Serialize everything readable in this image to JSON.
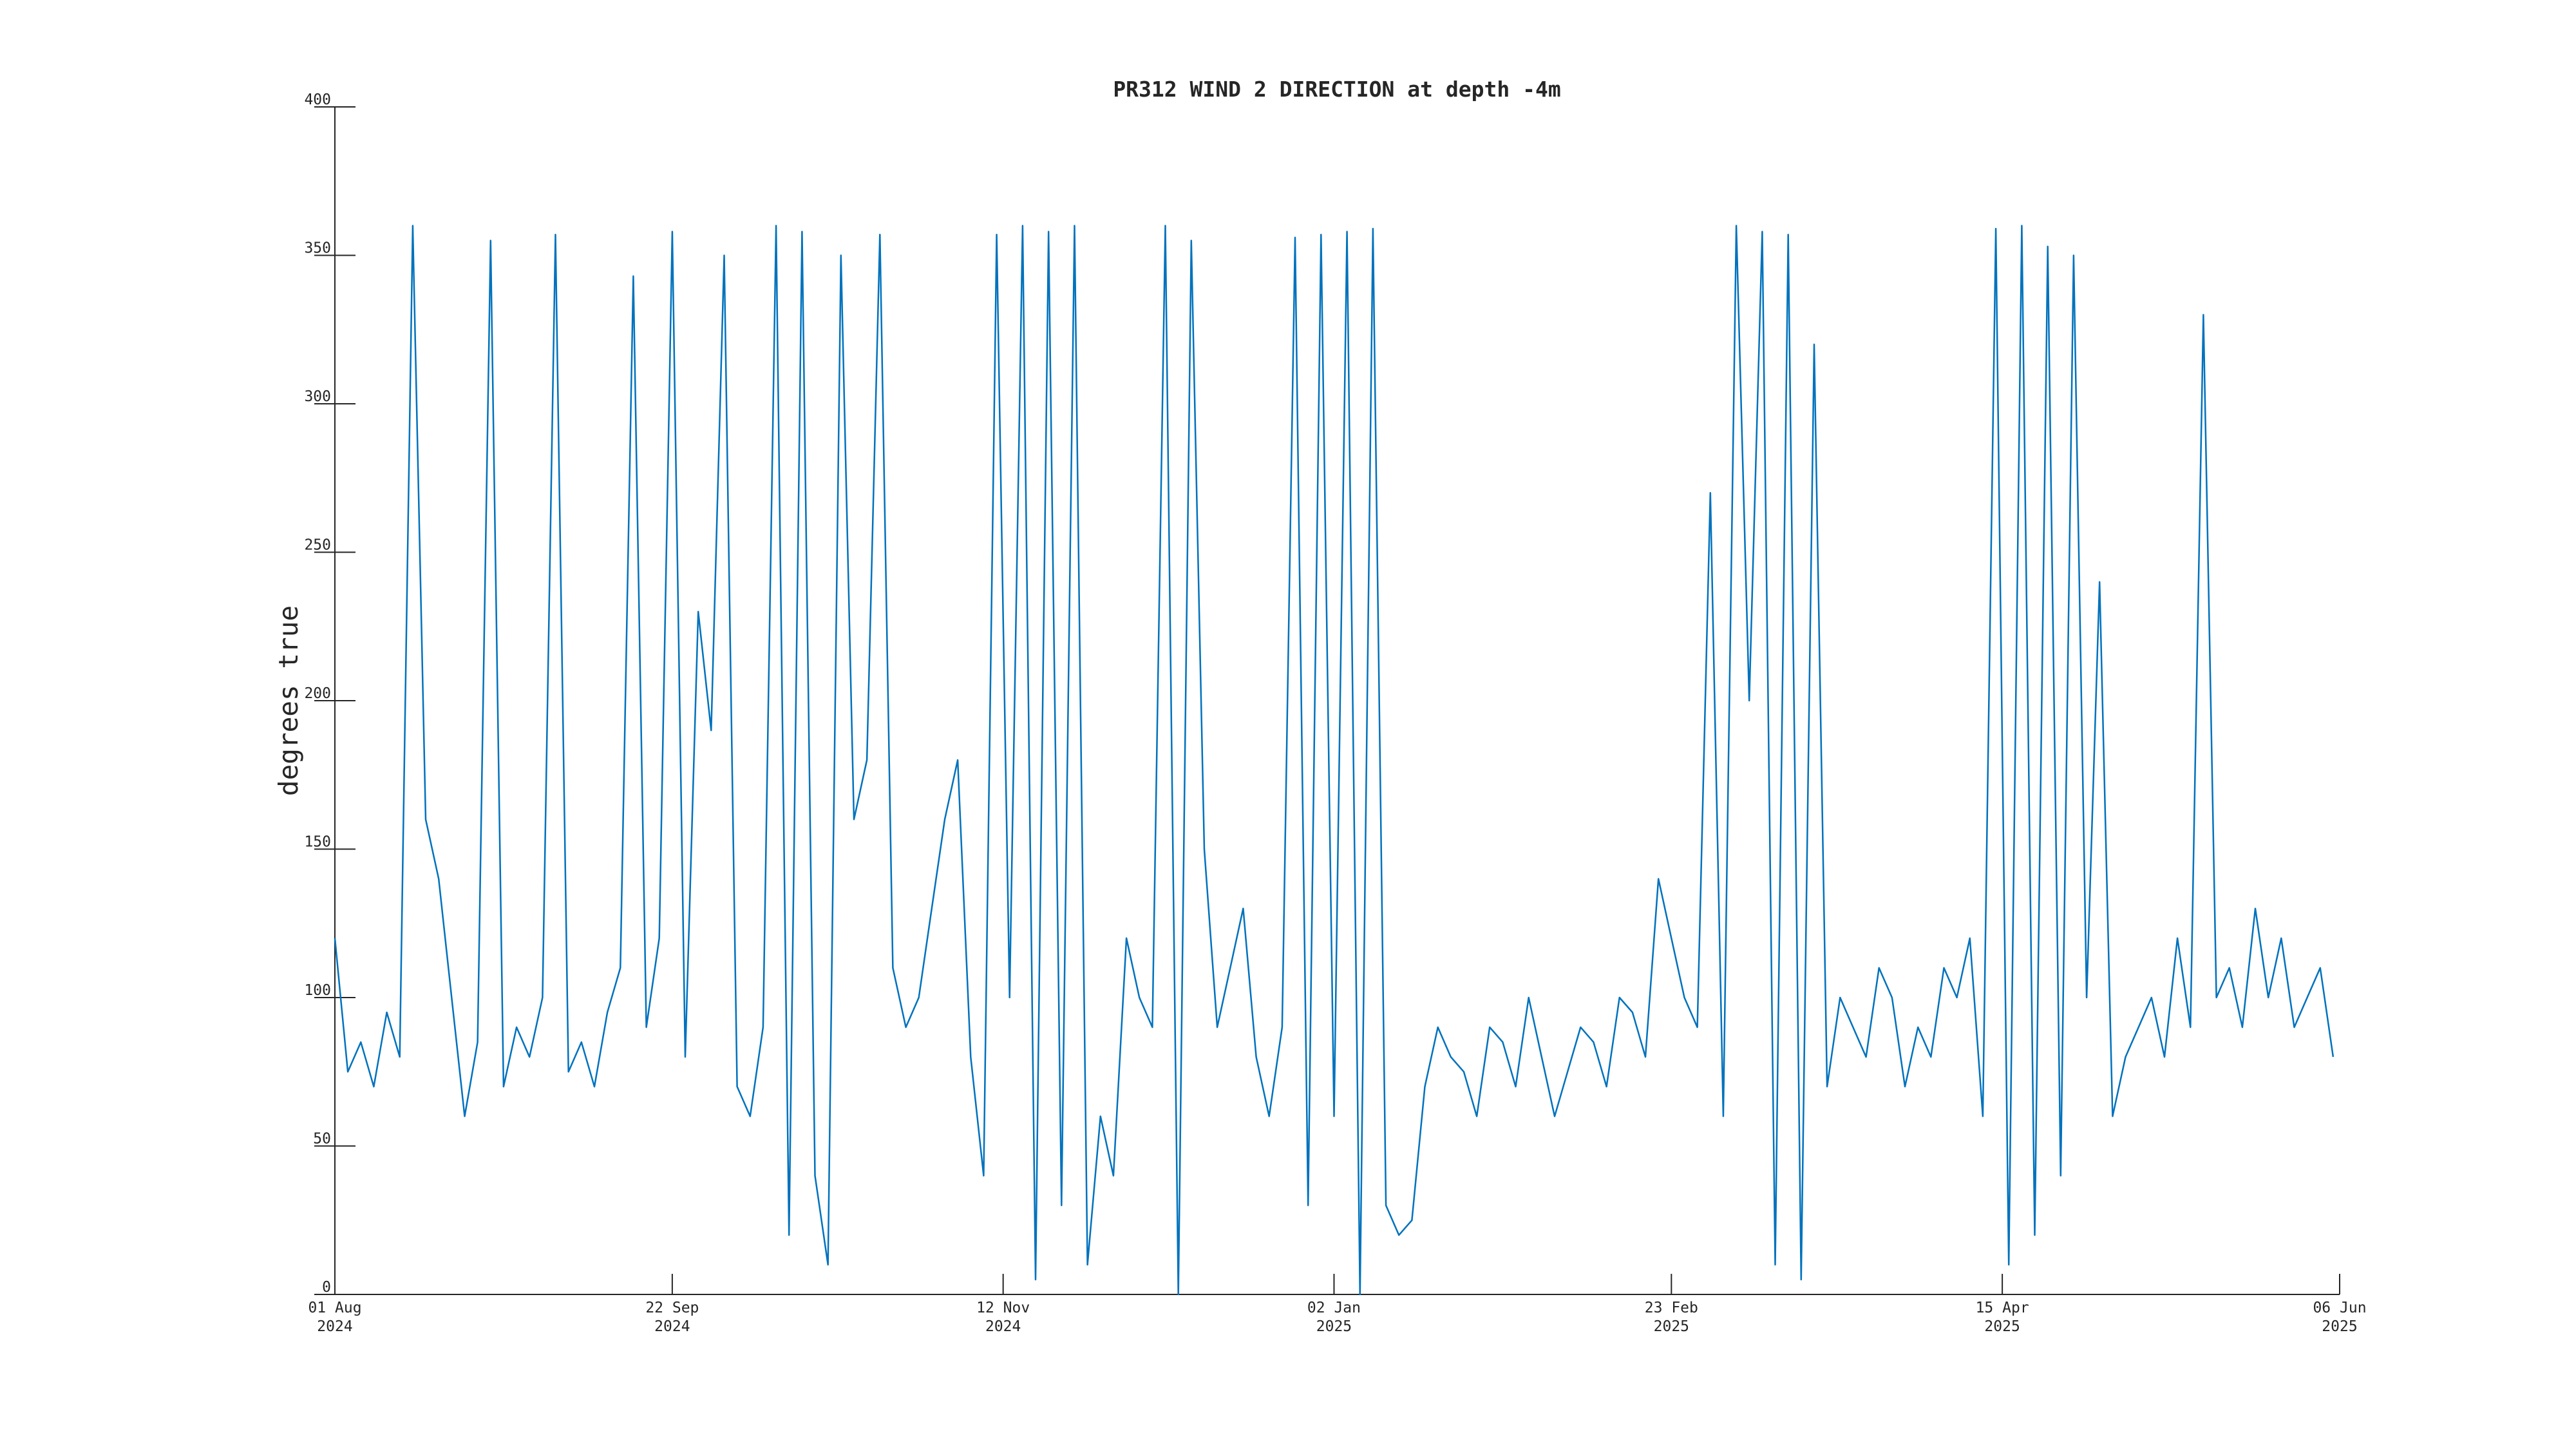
{
  "chart_data": {
    "type": "line",
    "title": "PR312 WIND 2 DIRECTION at depth -4m",
    "ylabel": "degrees true",
    "x": [
      "2024-08-01",
      "2024-08-03",
      "2024-08-05",
      "2024-08-07",
      "2024-08-09",
      "2024-08-11",
      "2024-08-13",
      "2024-08-15",
      "2024-08-17",
      "2024-08-19",
      "2024-08-21",
      "2024-08-23",
      "2024-08-25",
      "2024-08-27",
      "2024-08-29",
      "2024-08-31",
      "2024-09-02",
      "2024-09-04",
      "2024-09-06",
      "2024-09-08",
      "2024-09-10",
      "2024-09-12",
      "2024-09-14",
      "2024-09-16",
      "2024-09-18",
      "2024-09-20",
      "2024-09-22",
      "2024-09-24",
      "2024-09-26",
      "2024-09-28",
      "2024-09-30",
      "2024-10-02",
      "2024-10-04",
      "2024-10-06",
      "2024-10-08",
      "2024-10-10",
      "2024-10-12",
      "2024-10-14",
      "2024-10-16",
      "2024-10-18",
      "2024-10-20",
      "2024-10-22",
      "2024-10-24",
      "2024-10-26",
      "2024-10-28",
      "2024-10-30",
      "2024-11-01",
      "2024-11-03",
      "2024-11-05",
      "2024-11-07",
      "2024-11-09",
      "2024-11-11",
      "2024-11-13",
      "2024-11-15",
      "2024-11-17",
      "2024-11-19",
      "2024-11-21",
      "2024-11-23",
      "2024-11-25",
      "2024-11-27",
      "2024-11-29",
      "2024-12-01",
      "2024-12-03",
      "2024-12-05",
      "2024-12-07",
      "2024-12-09",
      "2024-12-11",
      "2024-12-13",
      "2024-12-15",
      "2024-12-17",
      "2024-12-19",
      "2024-12-21",
      "2024-12-23",
      "2024-12-25",
      "2024-12-27",
      "2024-12-29",
      "2024-12-31",
      "2025-01-02",
      "2025-01-04",
      "2025-01-06",
      "2025-01-08",
      "2025-01-10",
      "2025-01-12",
      "2025-01-14",
      "2025-01-16",
      "2025-01-18",
      "2025-01-20",
      "2025-01-22",
      "2025-01-24",
      "2025-01-26",
      "2025-01-28",
      "2025-01-30",
      "2025-02-01",
      "2025-02-03",
      "2025-02-05",
      "2025-02-07",
      "2025-02-09",
      "2025-02-11",
      "2025-02-13",
      "2025-02-15",
      "2025-02-17",
      "2025-02-19",
      "2025-02-21",
      "2025-02-23",
      "2025-02-25",
      "2025-02-27",
      "2025-03-01",
      "2025-03-03",
      "2025-03-05",
      "2025-03-07",
      "2025-03-09",
      "2025-03-11",
      "2025-03-13",
      "2025-03-15",
      "2025-03-17",
      "2025-03-19",
      "2025-03-21",
      "2025-03-23",
      "2025-03-25",
      "2025-03-27",
      "2025-03-29",
      "2025-03-31",
      "2025-04-02",
      "2025-04-04",
      "2025-04-06",
      "2025-04-08",
      "2025-04-10",
      "2025-04-12",
      "2025-04-14",
      "2025-04-16",
      "2025-04-18",
      "2025-04-20",
      "2025-04-22",
      "2025-04-24",
      "2025-04-26",
      "2025-04-28",
      "2025-04-30",
      "2025-05-02",
      "2025-05-04",
      "2025-05-06",
      "2025-05-08",
      "2025-05-10",
      "2025-05-12",
      "2025-05-14",
      "2025-05-16",
      "2025-05-18",
      "2025-05-20",
      "2025-05-22",
      "2025-05-24",
      "2025-05-26",
      "2025-05-28",
      "2025-05-30",
      "2025-06-01",
      "2025-06-03",
      "2025-06-05"
    ],
    "series": [
      {
        "name": "WIND 2 DIRECTION",
        "color": "#0072bd",
        "values": [
          120,
          75,
          85,
          70,
          95,
          80,
          360,
          160,
          140,
          100,
          60,
          85,
          355,
          70,
          90,
          80,
          100,
          357,
          75,
          85,
          70,
          95,
          110,
          343,
          90,
          120,
          358,
          80,
          230,
          190,
          350,
          70,
          60,
          90,
          360,
          20,
          358,
          40,
          10,
          350,
          160,
          180,
          357,
          110,
          90,
          100,
          130,
          160,
          180,
          80,
          40,
          357,
          100,
          360,
          5,
          358,
          30,
          360,
          10,
          60,
          40,
          120,
          100,
          90,
          360,
          0,
          355,
          150,
          90,
          110,
          130,
          80,
          60,
          90,
          356,
          30,
          357,
          60,
          358,
          0,
          359,
          30,
          20,
          25,
          70,
          90,
          80,
          75,
          60,
          90,
          85,
          70,
          100,
          80,
          60,
          75,
          90,
          85,
          70,
          100,
          95,
          80,
          140,
          120,
          100,
          90,
          270,
          60,
          360,
          200,
          358,
          10,
          357,
          5,
          320,
          70,
          100,
          90,
          80,
          110,
          100,
          70,
          90,
          80,
          110,
          100,
          120,
          60,
          359,
          10,
          360,
          20,
          353,
          40,
          350,
          100,
          240,
          60,
          80,
          90,
          100,
          80,
          120,
          90,
          330,
          100,
          110,
          90,
          130,
          100,
          120,
          90,
          100,
          110,
          80
        ]
      }
    ],
    "xlim": [
      "2024-08-01",
      "2025-06-06"
    ],
    "xticks": [
      {
        "value": "2024-08-01",
        "label": "01 Aug 2024"
      },
      {
        "value": "2024-09-22",
        "label": "22 Sep 2024"
      },
      {
        "value": "2024-11-12",
        "label": "12 Nov 2024"
      },
      {
        "value": "2025-01-02",
        "label": "02 Jan 2025"
      },
      {
        "value": "2025-02-23",
        "label": "23 Feb 2025"
      },
      {
        "value": "2025-04-15",
        "label": "15 Apr 2025"
      },
      {
        "value": "2025-06-06",
        "label": "06 Jun 2025"
      }
    ],
    "ylim": [
      0,
      400
    ],
    "yticks": [
      0,
      50,
      100,
      150,
      200,
      250,
      300,
      350,
      400
    ],
    "grid": false
  }
}
